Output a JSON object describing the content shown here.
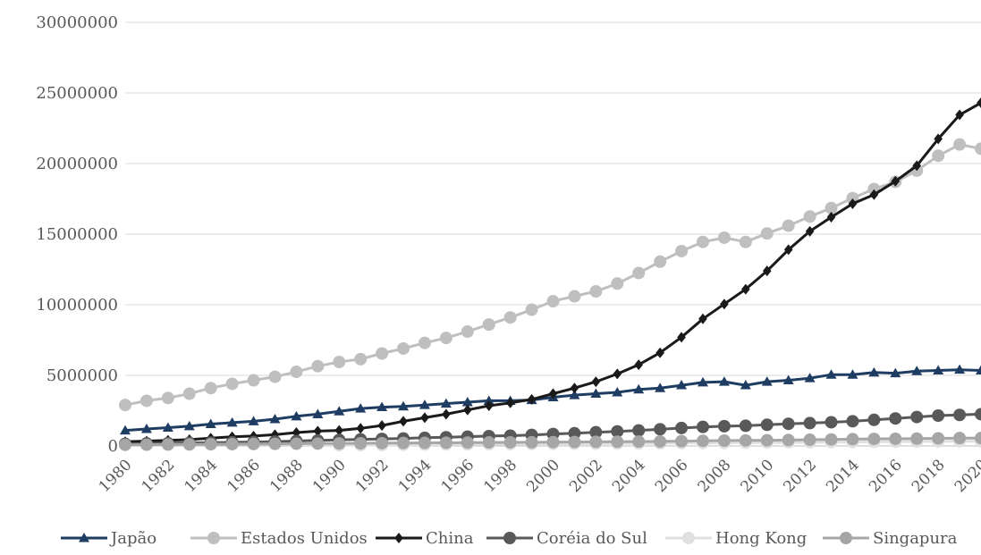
{
  "chart_data": {
    "type": "line",
    "title": "",
    "xlabel": "",
    "ylabel": "",
    "x": [
      1980,
      1981,
      1982,
      1983,
      1984,
      1985,
      1986,
      1987,
      1988,
      1989,
      1990,
      1991,
      1992,
      1993,
      1994,
      1995,
      1996,
      1997,
      1998,
      1999,
      2000,
      2001,
      2002,
      2003,
      2004,
      2005,
      2006,
      2007,
      2008,
      2009,
      2010,
      2011,
      2012,
      2013,
      2014,
      2015,
      2016,
      2017,
      2018,
      2019,
      2020
    ],
    "x_tick_labels": [
      "1980",
      "1982",
      "1984",
      "1986",
      "1988",
      "1990",
      "1992",
      "1994",
      "1996",
      "1998",
      "2000",
      "2002",
      "2004",
      "2006",
      "2008",
      "2010",
      "2012",
      "2014",
      "2016",
      "2018",
      "2020"
    ],
    "ylim": [
      0,
      30000000
    ],
    "y_ticks": [
      0,
      5000000,
      10000000,
      15000000,
      20000000,
      25000000,
      30000000
    ],
    "y_tick_labels": [
      "0",
      "5000000",
      "10000000",
      "15000000",
      "20000000",
      "25000000",
      "30000000"
    ],
    "grid": true,
    "legend_position": "bottom",
    "series": [
      {
        "name": "Japão",
        "color": "#1f3d63",
        "marker": "triangle",
        "values": [
          1100000,
          1200000,
          1300000,
          1400000,
          1550000,
          1650000,
          1750000,
          1900000,
          2100000,
          2250000,
          2450000,
          2650000,
          2750000,
          2800000,
          2900000,
          3000000,
          3100000,
          3200000,
          3200000,
          3250000,
          3450000,
          3600000,
          3700000,
          3800000,
          4000000,
          4100000,
          4300000,
          4500000,
          4550000,
          4300000,
          4550000,
          4650000,
          4800000,
          5050000,
          5050000,
          5200000,
          5150000,
          5300000,
          5350000,
          5400000,
          5350000
        ]
      },
      {
        "name": "Estados Unidos",
        "color": "#bfbfbf",
        "marker": "circle",
        "values": [
          2900000,
          3200000,
          3400000,
          3700000,
          4100000,
          4400000,
          4650000,
          4900000,
          5250000,
          5650000,
          5950000,
          6150000,
          6550000,
          6900000,
          7300000,
          7650000,
          8100000,
          8600000,
          9100000,
          9650000,
          10250000,
          10600000,
          10950000,
          11500000,
          12250000,
          13050000,
          13800000,
          14450000,
          14750000,
          14450000,
          15050000,
          15600000,
          16250000,
          16850000,
          17550000,
          18200000,
          18700000,
          19500000,
          20550000,
          21350000,
          21050000
        ]
      },
      {
        "name": "China",
        "color": "#1a1a1a",
        "marker": "diamond",
        "values": [
          300000,
          350000,
          400000,
          450000,
          550000,
          650000,
          700000,
          800000,
          950000,
          1050000,
          1100000,
          1250000,
          1450000,
          1750000,
          2000000,
          2250000,
          2550000,
          2850000,
          3050000,
          3300000,
          3700000,
          4100000,
          4550000,
          5100000,
          5750000,
          6600000,
          7700000,
          9000000,
          10050000,
          11100000,
          12400000,
          13900000,
          15200000,
          16200000,
          17150000,
          17800000,
          18750000,
          19850000,
          21750000,
          23450000,
          24300000
        ]
      },
      {
        "name": "Coréia do Sul",
        "color": "#595959",
        "marker": "circle",
        "values": [
          150000,
          180000,
          200000,
          220000,
          240000,
          260000,
          280000,
          310000,
          350000,
          390000,
          430000,
          470000,
          500000,
          530000,
          580000,
          620000,
          660000,
          700000,
          730000,
          780000,
          850000,
          900000,
          970000,
          1030000,
          1100000,
          1180000,
          1270000,
          1350000,
          1400000,
          1430000,
          1500000,
          1570000,
          1620000,
          1680000,
          1750000,
          1850000,
          1950000,
          2050000,
          2150000,
          2200000,
          2250000
        ]
      },
      {
        "name": "Hong Kong",
        "color": "#e0e0e0",
        "marker": "circle",
        "values": [
          null,
          null,
          null,
          null,
          null,
          null,
          null,
          null,
          null,
          null,
          50000,
          60000,
          70000,
          80000,
          90000,
          100000,
          110000,
          120000,
          130000,
          140000,
          150000,
          155000,
          160000,
          170000,
          180000,
          190000,
          200000,
          210000,
          220000,
          230000,
          240000,
          250000,
          260000,
          270000,
          280000,
          290000,
          300000,
          310000,
          320000,
          330000,
          330000
        ]
      },
      {
        "name": "Singapura",
        "color": "#a6a6a6",
        "marker": "circle",
        "values": [
          80000,
          90000,
          100000,
          110000,
          120000,
          130000,
          140000,
          150000,
          160000,
          170000,
          180000,
          190000,
          200000,
          210000,
          220000,
          230000,
          240000,
          250000,
          255000,
          260000,
          270000,
          280000,
          290000,
          300000,
          310000,
          320000,
          340000,
          360000,
          380000,
          390000,
          400000,
          420000,
          440000,
          460000,
          480000,
          500000,
          510000,
          520000,
          540000,
          560000,
          560000
        ]
      }
    ]
  }
}
